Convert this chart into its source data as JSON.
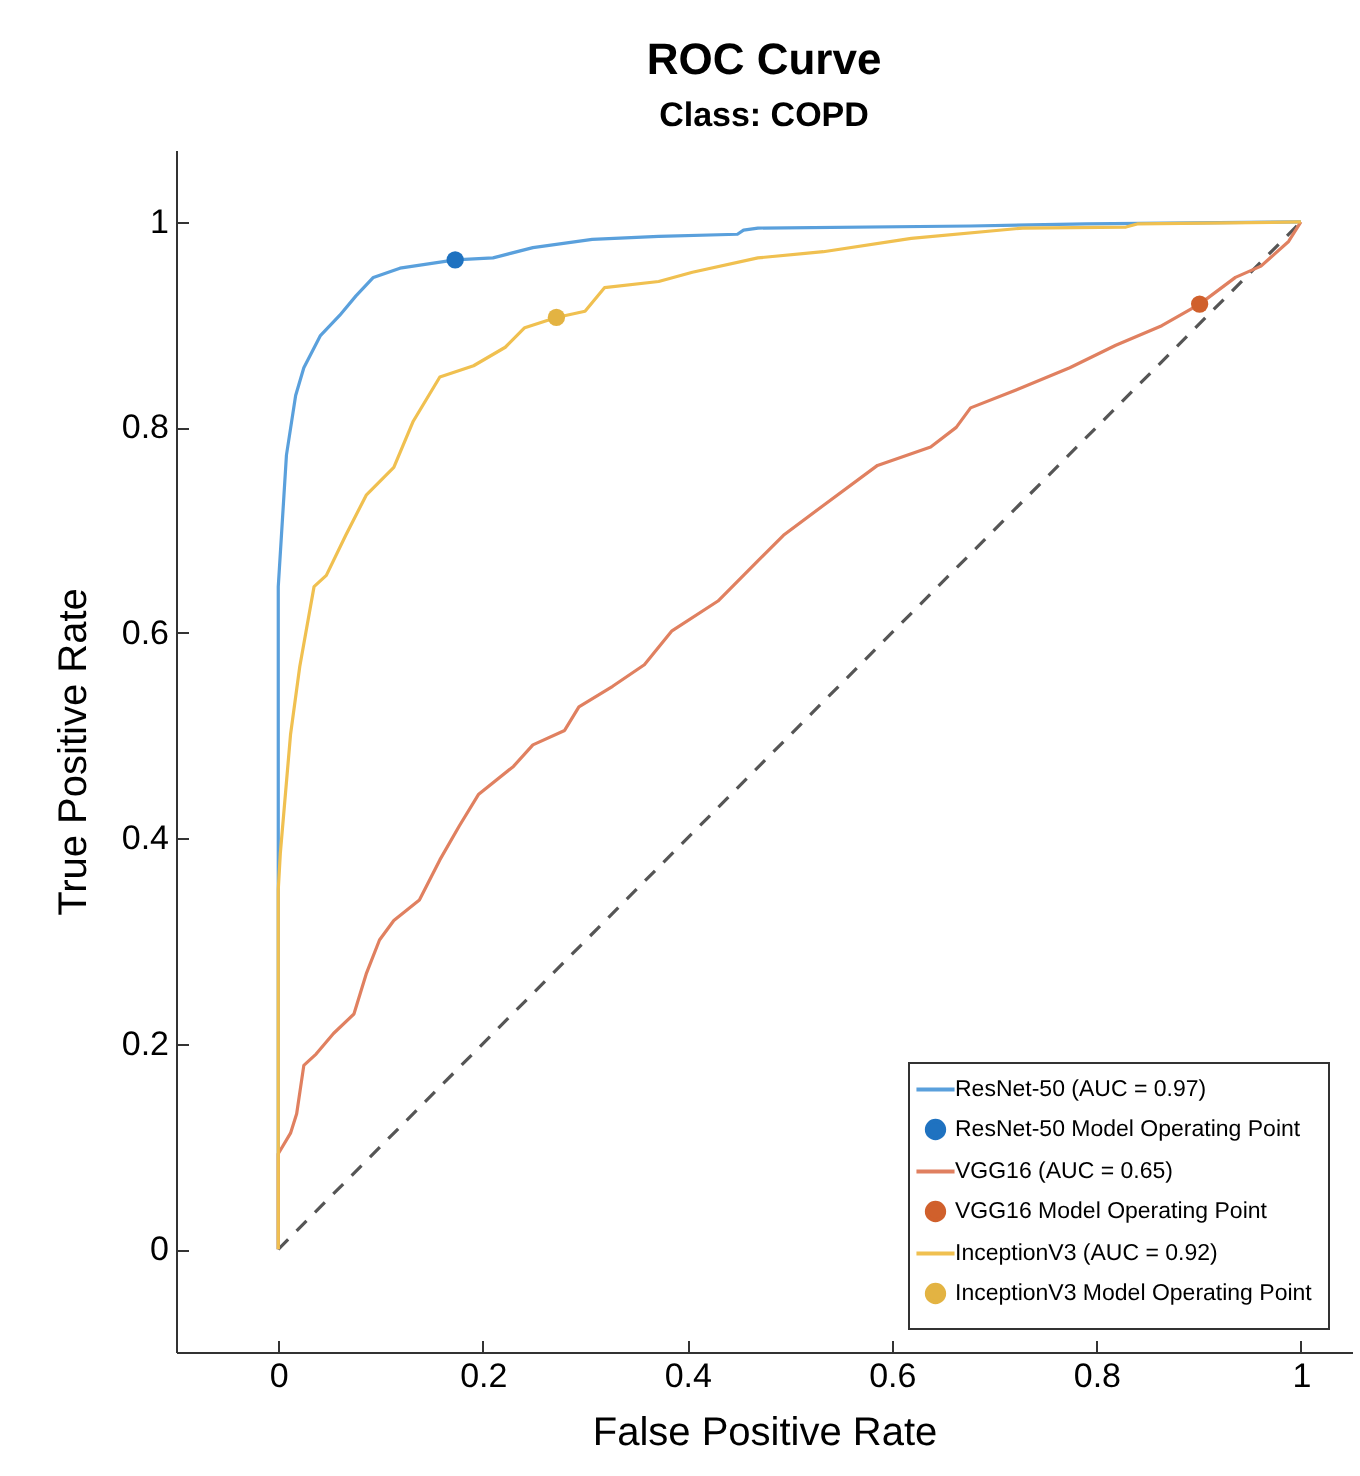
{
  "chart_data": {
    "type": "line",
    "title": "ROC Curve",
    "subtitle": "Class: COPD",
    "xlabel": "False Positive Rate",
    "ylabel": "True Positive Rate",
    "xlim": [
      -0.1,
      1.05
    ],
    "ylim": [
      -0.1,
      1.07
    ],
    "xticks": [
      {
        "value": 0,
        "label": "0"
      },
      0.2,
      0.4,
      0.6,
      0.8,
      {
        "value": 1,
        "label": "1"
      }
    ],
    "yticks": [
      {
        "value": 0,
        "label": "0"
      },
      0.2,
      0.4,
      0.6,
      0.8,
      {
        "value": 1,
        "label": "1"
      }
    ],
    "grid": false,
    "legend": "bottom right",
    "series": [
      {
        "name": "ResNet-50 (AUC = 0.97)",
        "type": "line",
        "color": "#5aa0dc",
        "x": [
          0,
          0,
          0,
          0.004,
          0.008,
          0.017,
          0.025,
          0.041,
          0.06,
          0.076,
          0.093,
          0.119,
          0.173,
          0.21,
          0.249,
          0.307,
          0.372,
          0.449,
          0.455,
          0.469,
          0.677,
          0.79,
          1
        ],
        "values": [
          0,
          0.355,
          0.645,
          0.709,
          0.773,
          0.831,
          0.858,
          0.889,
          0.909,
          0.928,
          0.946,
          0.955,
          0.963,
          0.965,
          0.975,
          0.983,
          0.986,
          0.988,
          0.992,
          0.994,
          0.996,
          0.998,
          1
        ]
      },
      {
        "name": "ResNet-50 Model Operating Point",
        "type": "scatter",
        "marker": "circle",
        "color": "#1f72c0",
        "x": [
          0.173
        ],
        "values": [
          0.963
        ]
      },
      {
        "name": "VGG16 (AUC = 0.65)",
        "type": "line",
        "color": "#e08060",
        "x": [
          0,
          0,
          0.012,
          0.018,
          0.025,
          0.037,
          0.054,
          0.074,
          0.086,
          0.099,
          0.113,
          0.138,
          0.158,
          0.177,
          0.196,
          0.23,
          0.249,
          0.28,
          0.294,
          0.327,
          0.358,
          0.385,
          0.43,
          0.469,
          0.494,
          0.533,
          0.586,
          0.638,
          0.663,
          0.677,
          0.728,
          0.774,
          0.819,
          0.864,
          0.901,
          0.936,
          0.961,
          0.988,
          1
        ],
        "values": [
          0,
          0.093,
          0.113,
          0.132,
          0.179,
          0.19,
          0.21,
          0.229,
          0.268,
          0.301,
          0.32,
          0.34,
          0.379,
          0.412,
          0.443,
          0.47,
          0.491,
          0.505,
          0.528,
          0.548,
          0.569,
          0.602,
          0.631,
          0.67,
          0.695,
          0.724,
          0.763,
          0.781,
          0.8,
          0.819,
          0.839,
          0.858,
          0.88,
          0.899,
          0.92,
          0.946,
          0.957,
          0.981,
          1
        ]
      },
      {
        "name": "VGG16 Model Operating Point",
        "type": "scatter",
        "marker": "circle",
        "color": "#d0602c",
        "x": [
          0.901
        ],
        "values": [
          0.92
        ]
      },
      {
        "name": "InceptionV3 (AUC = 0.92)",
        "type": "line",
        "color": "#f0c050",
        "x": [
          0,
          0,
          0.002,
          0.012,
          0.021,
          0.035,
          0.047,
          0.066,
          0.086,
          0.113,
          0.132,
          0.158,
          0.191,
          0.222,
          0.241,
          0.272,
          0.3,
          0.319,
          0.372,
          0.405,
          0.469,
          0.533,
          0.619,
          0.728,
          0.829,
          0.84,
          1
        ],
        "values": [
          0,
          0.35,
          0.385,
          0.501,
          0.567,
          0.645,
          0.656,
          0.695,
          0.734,
          0.761,
          0.806,
          0.849,
          0.86,
          0.878,
          0.897,
          0.907,
          0.913,
          0.936,
          0.942,
          0.951,
          0.965,
          0.971,
          0.984,
          0.994,
          0.995,
          0.998,
          1
        ]
      },
      {
        "name": "InceptionV3 Model Operating Point",
        "type": "scatter",
        "marker": "circle",
        "color": "#e3b342",
        "x": [
          0.272
        ],
        "values": [
          0.907
        ]
      },
      {
        "type": "line",
        "line_style": "dashed",
        "color": "#555555",
        "x": [
          0,
          1
        ],
        "values": [
          0,
          1
        ]
      }
    ]
  }
}
